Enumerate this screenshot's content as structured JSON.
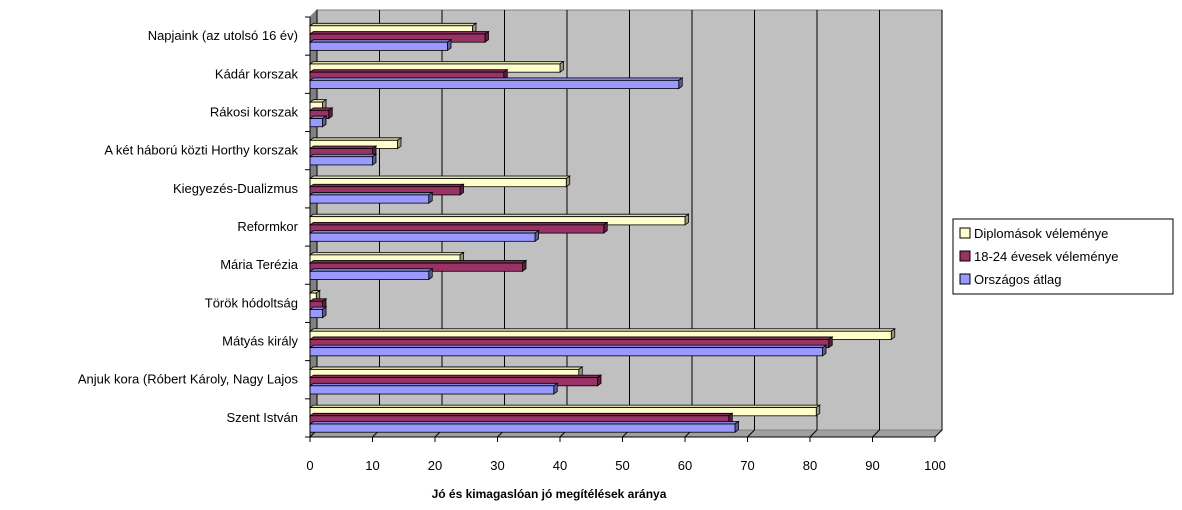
{
  "chart_data": {
    "type": "bar",
    "orientation": "horizontal",
    "style": "3d-clustered-bar",
    "categories": [
      "Szent István",
      "Anjuk kora (Róbert Károly, Nagy Lajos",
      "Mátyás király",
      "Török hódoltság",
      "Mária Terézia",
      "Reformkor",
      "Kiegyezés-Dualizmus",
      "A két háború közti Horthy korszak",
      "Rákosi korszak",
      "Kádár korszak",
      "Napjaink (az utolsó 16 év)"
    ],
    "series": [
      {
        "name": "Diplomások véleménye",
        "color": "#ffffcc",
        "values": [
          81,
          43,
          93,
          1,
          24,
          60,
          41,
          14,
          2,
          40,
          26
        ]
      },
      {
        "name": "18-24 évesek véleménye",
        "color": "#993366",
        "values": [
          67,
          46,
          83,
          2,
          34,
          47,
          24,
          10,
          3,
          31,
          28
        ]
      },
      {
        "name": "Országos átlag",
        "color": "#9999ff",
        "values": [
          68,
          39,
          82,
          2,
          19,
          36,
          19,
          10,
          2,
          59,
          22
        ]
      }
    ],
    "xlabel": "Jó és kimagaslóan jó megítélések aránya",
    "xlim": [
      0,
      100
    ],
    "xticks": [
      "0",
      "10",
      "20",
      "30",
      "40",
      "50",
      "60",
      "70",
      "80",
      "90",
      "100"
    ],
    "grid": "vertical",
    "wall_color": "#c0c0c0",
    "legend_position": "right"
  }
}
